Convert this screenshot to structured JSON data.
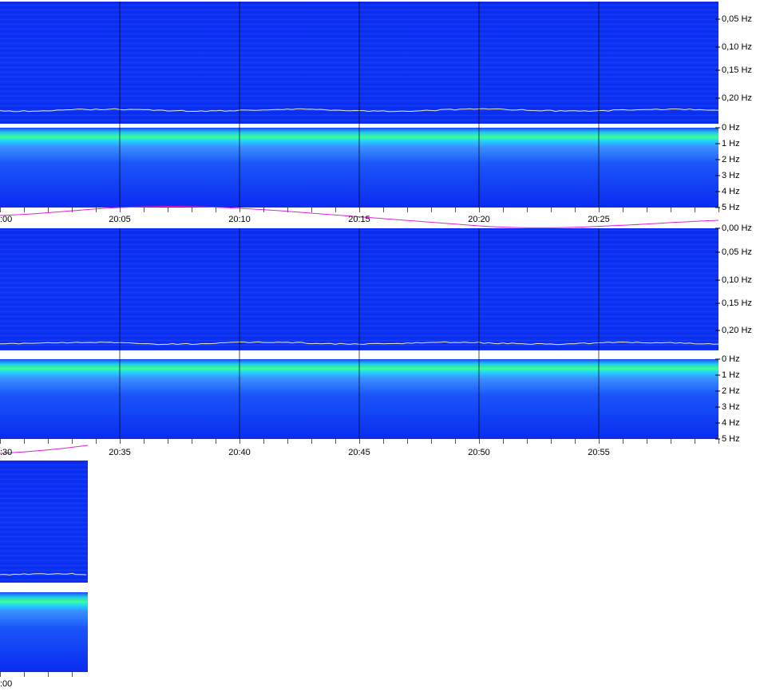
{
  "rows": [
    {
      "time_labels": [
        ":00",
        "20:05",
        "20:10",
        "20:15",
        "20:20",
        "20:25"
      ],
      "low_freq_labels": [
        "0,05 Hz",
        "0,10 Hz",
        "0,15 Hz",
        "0,20 Hz"
      ],
      "high_freq_labels": [
        "0 Hz",
        "1 Hz",
        "2 Hz",
        "3 Hz",
        "4 Hz",
        "5 Hz"
      ]
    },
    {
      "time_labels": [
        ":30",
        "20:35",
        "20:40",
        "20:45",
        "20:50",
        "20:55"
      ],
      "low_freq_labels": [
        "0,00 Hz",
        "0,05 Hz",
        "0,10 Hz",
        "0,15 Hz",
        "0,20 Hz"
      ],
      "high_freq_labels": [
        "0 Hz",
        "1 Hz",
        "2 Hz",
        "3 Hz",
        "4 Hz",
        "5 Hz"
      ]
    },
    {
      "time_labels": [
        ":00"
      ]
    }
  ]
}
